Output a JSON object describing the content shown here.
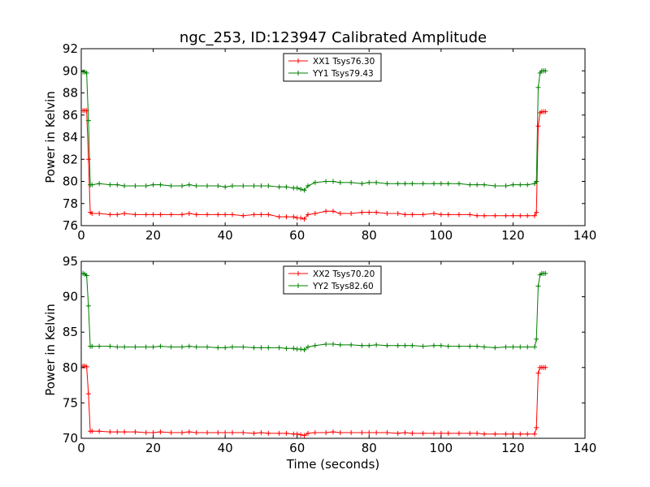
{
  "chart_data": [
    {
      "type": "line",
      "title": "ngc_253, ID:123947 Calibrated Amplitude",
      "xlabel": "",
      "ylabel": "Power in Kelvin",
      "xlim": [
        0,
        140
      ],
      "ylim": [
        76,
        92
      ],
      "xticks": [
        "0",
        "20",
        "40",
        "60",
        "80",
        "100",
        "120",
        "140"
      ],
      "yticks": [
        "76",
        "78",
        "80",
        "82",
        "84",
        "86",
        "88",
        "90",
        "92"
      ],
      "legend_position": "top-center",
      "x": [
        0.5,
        1.0,
        1.5,
        2.0,
        2.5,
        3,
        5,
        8,
        10,
        12,
        15,
        18,
        20,
        22,
        25,
        28,
        30,
        32,
        35,
        38,
        40,
        42,
        45,
        48,
        50,
        52,
        55,
        57,
        59,
        60,
        61,
        62,
        63,
        65,
        68,
        70,
        72,
        75,
        78,
        80,
        82,
        85,
        88,
        90,
        92,
        95,
        98,
        100,
        102,
        105,
        108,
        110,
        112,
        115,
        118,
        120,
        122,
        124,
        126,
        126.5,
        127,
        127.5,
        128,
        128.5,
        129
      ],
      "series": [
        {
          "name": "XX1 Tsys76.30",
          "color": "#ff0000",
          "values": [
            86.4,
            86.4,
            86.4,
            82.0,
            77.2,
            77.1,
            77.1,
            77.0,
            77.0,
            77.1,
            77.0,
            77.0,
            77.0,
            77.0,
            77.0,
            77.0,
            77.1,
            77.0,
            77.0,
            77.0,
            77.0,
            77.0,
            76.9,
            77.0,
            77.0,
            77.0,
            76.8,
            76.8,
            76.8,
            76.7,
            76.7,
            76.6,
            77.0,
            77.1,
            77.3,
            77.3,
            77.1,
            77.1,
            77.2,
            77.2,
            77.2,
            77.1,
            77.1,
            77.0,
            77.0,
            77.0,
            77.1,
            77.0,
            77.0,
            77.0,
            77.0,
            76.9,
            76.9,
            76.9,
            76.9,
            76.9,
            76.9,
            76.9,
            76.9,
            77.2,
            85.0,
            86.2,
            86.3,
            86.3,
            86.3
          ]
        },
        {
          "name": "YY1 Tsys79.43",
          "color": "#008000",
          "values": [
            89.9,
            89.9,
            89.8,
            85.5,
            79.7,
            79.7,
            79.8,
            79.7,
            79.7,
            79.6,
            79.6,
            79.6,
            79.7,
            79.7,
            79.6,
            79.6,
            79.7,
            79.6,
            79.6,
            79.6,
            79.5,
            79.6,
            79.6,
            79.6,
            79.6,
            79.6,
            79.5,
            79.5,
            79.4,
            79.4,
            79.3,
            79.2,
            79.6,
            79.9,
            80.0,
            80.0,
            79.9,
            79.9,
            79.8,
            79.9,
            79.9,
            79.8,
            79.8,
            79.8,
            79.8,
            79.8,
            79.8,
            79.8,
            79.8,
            79.8,
            79.7,
            79.7,
            79.7,
            79.6,
            79.6,
            79.7,
            79.7,
            79.7,
            79.8,
            80.0,
            88.5,
            89.8,
            90.0,
            90.0,
            90.0
          ]
        }
      ]
    },
    {
      "type": "line",
      "title": "",
      "xlabel": "Time (seconds)",
      "ylabel": "Power in Kelvin",
      "xlim": [
        0,
        140
      ],
      "ylim": [
        70,
        95
      ],
      "xticks": [
        "0",
        "20",
        "40",
        "60",
        "80",
        "100",
        "120",
        "140"
      ],
      "yticks": [
        "70",
        "75",
        "80",
        "85",
        "90",
        "95"
      ],
      "legend_position": "top-center",
      "x": [
        0.5,
        1.0,
        1.5,
        2.0,
        2.5,
        3,
        5,
        8,
        10,
        12,
        15,
        18,
        20,
        22,
        25,
        28,
        30,
        32,
        35,
        38,
        40,
        42,
        45,
        48,
        50,
        52,
        55,
        57,
        59,
        60,
        61,
        62,
        63,
        65,
        68,
        70,
        72,
        75,
        78,
        80,
        82,
        85,
        88,
        90,
        92,
        95,
        98,
        100,
        102,
        105,
        108,
        110,
        112,
        115,
        118,
        120,
        122,
        124,
        126,
        126.5,
        127,
        127.5,
        128,
        128.5,
        129
      ],
      "series": [
        {
          "name": "XX2 Tsys70.20",
          "color": "#ff0000",
          "values": [
            80.2,
            80.2,
            80.1,
            76.3,
            71.0,
            71.0,
            71.0,
            70.9,
            70.9,
            70.9,
            70.9,
            70.8,
            70.8,
            70.9,
            70.8,
            70.8,
            70.9,
            70.8,
            70.8,
            70.8,
            70.8,
            70.8,
            70.8,
            70.7,
            70.8,
            70.7,
            70.7,
            70.7,
            70.6,
            70.6,
            70.5,
            70.4,
            70.7,
            70.8,
            70.8,
            70.9,
            70.8,
            70.8,
            70.8,
            70.8,
            70.8,
            70.8,
            70.7,
            70.8,
            70.7,
            70.7,
            70.7,
            70.7,
            70.7,
            70.7,
            70.7,
            70.7,
            70.6,
            70.6,
            70.6,
            70.6,
            70.6,
            70.6,
            70.6,
            71.5,
            79.2,
            80.0,
            80.0,
            80.0,
            80.0
          ]
        },
        {
          "name": "YY2 Tsys82.60",
          "color": "#008000",
          "values": [
            93.3,
            93.2,
            93.0,
            88.7,
            83.0,
            83.0,
            83.0,
            83.0,
            82.9,
            82.9,
            82.9,
            82.9,
            82.9,
            83.0,
            82.9,
            82.9,
            83.0,
            82.9,
            82.9,
            82.8,
            82.8,
            82.9,
            82.9,
            82.8,
            82.8,
            82.8,
            82.8,
            82.7,
            82.7,
            82.6,
            82.6,
            82.5,
            82.9,
            83.1,
            83.3,
            83.3,
            83.2,
            83.2,
            83.1,
            83.1,
            83.2,
            83.1,
            83.1,
            83.1,
            83.1,
            83.0,
            83.1,
            83.1,
            83.0,
            83.0,
            83.0,
            83.0,
            82.9,
            82.8,
            82.9,
            82.9,
            82.9,
            82.9,
            82.9,
            84.0,
            91.5,
            93.1,
            93.3,
            93.3,
            93.3
          ]
        }
      ]
    }
  ]
}
